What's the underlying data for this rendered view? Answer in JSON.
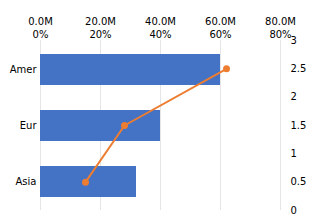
{
  "chart_data": {
    "type": "bar",
    "orientation": "horizontal",
    "categories": [
      "Asia",
      "Eur",
      "Amer"
    ],
    "series": [
      {
        "type": "bar",
        "color": "#4472C4",
        "values": [
          32000000,
          40000000,
          60000000
        ]
      },
      {
        "type": "line",
        "axis": "y2",
        "color": "#ED7D31",
        "marker": "circle",
        "x": [
          15000000,
          28000000,
          62000000
        ],
        "values": [
          0.5,
          1.5,
          2.5
        ]
      }
    ],
    "xlim": [
      0,
      80000000
    ],
    "xticks": [
      {
        "value": 0,
        "label": "0.0M"
      },
      {
        "value": 20000000,
        "label": "20.0M"
      },
      {
        "value": 40000000,
        "label": "40.0M"
      },
      {
        "value": 60000000,
        "label": "60.0M"
      },
      {
        "value": 80000000,
        "label": "80.0M"
      }
    ],
    "x2lim": [
      0,
      0.8
    ],
    "x2ticks": [
      {
        "value": 0,
        "label": "0%"
      },
      {
        "value": 0.2,
        "label": "20%"
      },
      {
        "value": 0.4,
        "label": "40%"
      },
      {
        "value": 0.6,
        "label": "60%"
      },
      {
        "value": 0.8,
        "label": "80%"
      }
    ],
    "y2lim": [
      0,
      3
    ],
    "y2ticks": [
      0,
      0.5,
      1,
      1.5,
      2,
      2.5,
      3
    ],
    "grid": true
  }
}
